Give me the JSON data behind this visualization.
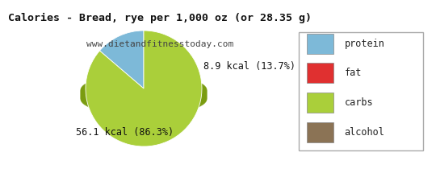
{
  "title_line1": "Calories - Bread, rye per 1,000 oz (or 28.35 g)",
  "subtitle": "www.dietandfitnesstoday.com",
  "slices": [
    {
      "label": "protein",
      "value": 8.9,
      "pct": 13.7,
      "color": "#7db9d8"
    },
    {
      "label": "carbs",
      "value": 56.1,
      "pct": 86.3,
      "color": "#aacf3a"
    }
  ],
  "shadow_color": "#7a9c10",
  "legend_colors": [
    "#7db9d8",
    "#e03030",
    "#aacf3a",
    "#8b7355"
  ],
  "legend_labels": [
    "protein",
    "fat",
    "carbs",
    "alcohol"
  ],
  "annotation_protein": "8.9 kcal (13.7%)",
  "annotation_carbs": "56.1 kcal (86.3%)",
  "bg_color": "#ffffff",
  "title_fontsize": 9.5,
  "subtitle_fontsize": 8.0,
  "annotation_fontsize": 8.5
}
